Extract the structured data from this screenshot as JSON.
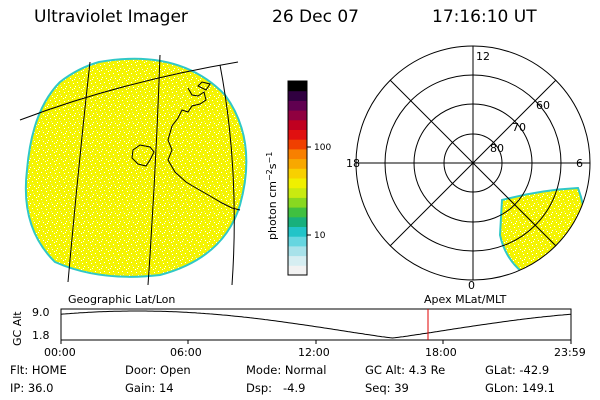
{
  "header": {
    "instrument": "Ultraviolet Imager",
    "date": "26 Dec 07",
    "time": "17:16:10 UT"
  },
  "colorbar": {
    "unit_label": "photon cm",
    "unit_exp1": "−2",
    "unit_s": "s",
    "unit_exp2": "−1",
    "tick_high": "100",
    "tick_low": "10",
    "colors": [
      "#f2f2f2",
      "#d6eef2",
      "#a8e2ea",
      "#66d6e0",
      "#22c4c8",
      "#18b07c",
      "#40c040",
      "#88d820",
      "#c8ea10",
      "#f0f000",
      "#f8d000",
      "#f8a800",
      "#f88000",
      "#f04000",
      "#e01010",
      "#c00020",
      "#900040",
      "#600050",
      "#300040",
      "#000000"
    ]
  },
  "polar": {
    "mlt_labels": [
      "12",
      "18",
      "6",
      "0"
    ],
    "lat_labels": [
      "60",
      "70",
      "80"
    ]
  },
  "panel_labels": {
    "left": "Geographic Lat/Lon",
    "right": "Apex MLat/MLT"
  },
  "altitude_plot": {
    "axis_label": "GC Alt",
    "y_ticks": [
      "9.0",
      "1.8"
    ],
    "x_ticks": [
      "00:00",
      "06:00",
      "12:00",
      "18:00",
      "23:59"
    ],
    "marker_hour": 17.27,
    "marker_color": "#e00000"
  },
  "status": [
    {
      "key": "Flt:",
      "value": "HOME"
    },
    {
      "key": "Door:",
      "value": "Open"
    },
    {
      "key": "Mode:",
      "value": "Normal"
    },
    {
      "key": "GC Alt:",
      "value": "4.3 Re"
    },
    {
      "key": "GLat:",
      "value": "-42.9"
    },
    {
      "key": "IP:",
      "value": "36.0"
    },
    {
      "key": "Gain:",
      "value": "14"
    },
    {
      "key": "Dsp:",
      "value": "-4.9"
    },
    {
      "key": "Seq:",
      "value": "39"
    },
    {
      "key": "GLon:",
      "value": "149.1"
    }
  ]
}
